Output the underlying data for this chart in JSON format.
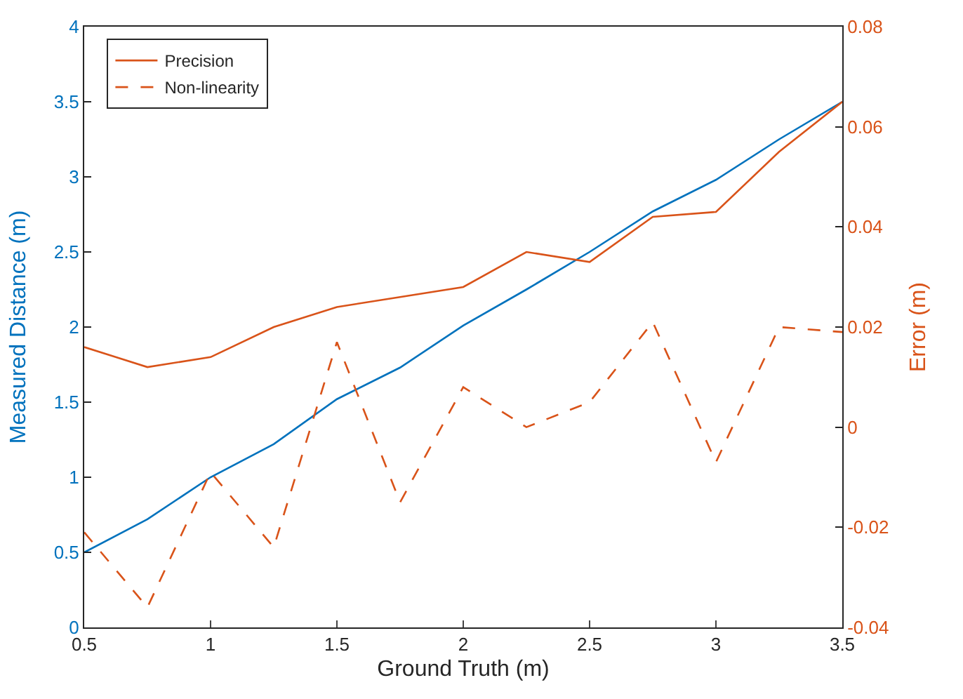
{
  "chart_data": {
    "type": "line",
    "xlabel": "Ground Truth (m)",
    "ylabel": "Measured Distance (m)",
    "y2label": "Error (m)",
    "x": [
      0.5,
      0.75,
      1,
      1.25,
      1.5,
      1.75,
      2,
      2.25,
      2.5,
      2.75,
      3,
      3.25,
      3.5
    ],
    "xlim": [
      0.5,
      3.5
    ],
    "xticks": [
      0.5,
      1,
      1.5,
      2,
      2.5,
      3,
      3.5
    ],
    "ylim": [
      0,
      4
    ],
    "yticks": [
      0,
      0.5,
      1,
      1.5,
      2,
      2.5,
      3,
      3.5,
      4
    ],
    "y2lim": [
      -0.04,
      0.08
    ],
    "y2ticks": [
      -0.04,
      -0.02,
      0,
      0.02,
      0.04,
      0.06,
      0.08
    ],
    "legend": "top left",
    "grid": false,
    "marker": "none",
    "series": [
      {
        "color": "#0072bd",
        "line_style": "solid",
        "values": [
          0.5,
          0.72,
          1.0,
          1.22,
          1.52,
          1.73,
          2.01,
          2.25,
          2.5,
          2.77,
          2.98,
          3.25,
          3.5
        ]
      },
      {
        "name": "Precision",
        "axis": "y2",
        "color": "#d95319",
        "line_style": "solid",
        "values": [
          0.016,
          0.012,
          0.014,
          0.02,
          0.024,
          0.026,
          0.028,
          0.035,
          0.033,
          0.042,
          0.043,
          0.055,
          0.065
        ]
      },
      {
        "name": "Non-linearity",
        "axis": "y2",
        "color": "#d95319",
        "line_style": "dashed",
        "values": [
          -0.021,
          -0.036,
          -0.009,
          -0.024,
          0.017,
          -0.015,
          0.008,
          0.0,
          0.005,
          0.021,
          -0.007,
          0.02,
          0.019
        ]
      }
    ]
  }
}
